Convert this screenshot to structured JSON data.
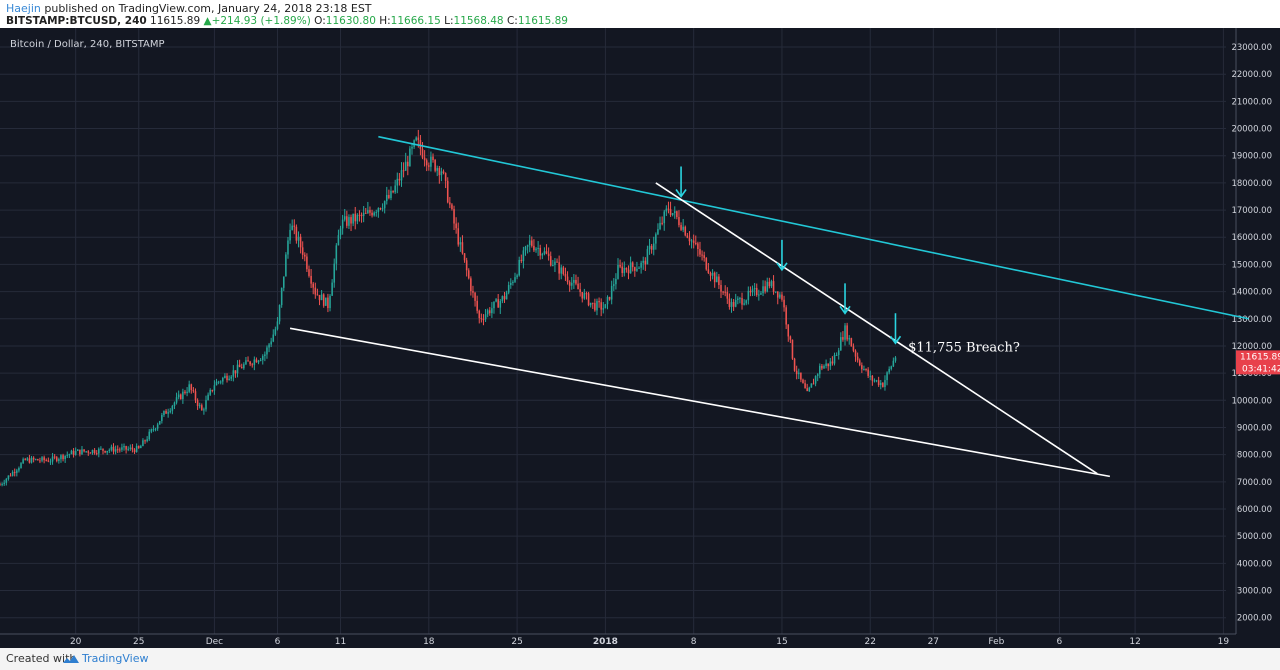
{
  "header": {
    "author": "Haejin",
    "published_text": " published on TradingView.com, January 24, 2018 23:18 EST",
    "symbol": "BITSTAMP:BTCUSD, 240",
    "last": "11615.89",
    "change": "+214.93 (+1.89%)",
    "change_arrow": "▲",
    "open_label": "O:",
    "open": "11630.80",
    "high_label": "H:",
    "high": "11666.15",
    "low_label": "L:",
    "low": "11568.48",
    "close_label": "C:",
    "close": "11615.89"
  },
  "footer": {
    "created_with": "Created with",
    "brand": "TradingView"
  },
  "colors": {
    "background": "#131722",
    "grid": "#262b3a",
    "up": "#26a69a",
    "down": "#ef5350",
    "channel": "#22c7d6",
    "trendline": "#ffffff",
    "arrow": "#2ad4e0",
    "price_tag": "#e8414b"
  },
  "chart_data": {
    "type": "candlestick",
    "title": "Bitcoin / Dollar, 240, BITSTAMP",
    "yticks": [
      2000,
      3000,
      4000,
      5000,
      6000,
      7000,
      8000,
      9000,
      10000,
      11000,
      12000,
      13000,
      14000,
      15000,
      16000,
      17000,
      18000,
      19000,
      20000,
      21000,
      22000,
      23000
    ],
    "ylim": [
      1400,
      23700
    ],
    "x_axis_start": "2017-11-14",
    "xlim_days": [
      0,
      98
    ],
    "xticks": [
      {
        "label": "20",
        "date": "2017-11-20"
      },
      {
        "label": "25",
        "date": "2017-11-25"
      },
      {
        "label": "Dec",
        "date": "2017-12-01"
      },
      {
        "label": "6",
        "date": "2017-12-06"
      },
      {
        "label": "11",
        "date": "2017-12-11"
      },
      {
        "label": "18",
        "date": "2017-12-18"
      },
      {
        "label": "25",
        "date": "2017-12-25"
      },
      {
        "label": "2018",
        "date": "2018-01-01"
      },
      {
        "label": "8",
        "date": "2018-01-08"
      },
      {
        "label": "15",
        "date": "2018-01-15"
      },
      {
        "label": "22",
        "date": "2018-01-22"
      },
      {
        "label": "27",
        "date": "2018-01-27"
      },
      {
        "label": "Feb",
        "date": "2018-02-01"
      },
      {
        "label": "6",
        "date": "2018-02-06"
      },
      {
        "label": "12",
        "date": "2018-02-12"
      },
      {
        "label": "19",
        "date": "2018-02-19"
      }
    ],
    "price_path": [
      [
        "2017-11-14",
        6900
      ],
      [
        "2017-11-16",
        7800
      ],
      [
        "2017-11-18",
        7800
      ],
      [
        "2017-11-20",
        8100
      ],
      [
        "2017-11-23",
        8200
      ],
      [
        "2017-11-25",
        8200
      ],
      [
        "2017-11-27",
        9500
      ],
      [
        "2017-11-29",
        10500
      ],
      [
        "2017-11-30",
        9600
      ],
      [
        "2017-12-01",
        10600
      ],
      [
        "2017-12-03",
        11200
      ],
      [
        "2017-12-05",
        11700
      ],
      [
        "2017-12-06",
        12800
      ],
      [
        "2017-12-07",
        16500
      ],
      [
        "2017-12-08",
        15500
      ],
      [
        "2017-12-09",
        14000
      ],
      [
        "2017-12-10",
        13500
      ],
      [
        "2017-12-11",
        16500
      ],
      [
        "2017-12-13",
        16800
      ],
      [
        "2017-12-15",
        17500
      ],
      [
        "2017-12-17",
        19500
      ],
      [
        "2017-12-18",
        18800
      ],
      [
        "2017-12-19",
        18500
      ],
      [
        "2017-12-20",
        16500
      ],
      [
        "2017-12-22",
        13000
      ],
      [
        "2017-12-24",
        13800
      ],
      [
        "2017-12-26",
        15800
      ],
      [
        "2017-12-27",
        15500
      ],
      [
        "2017-12-29",
        14500
      ],
      [
        "2017-12-31",
        13500
      ],
      [
        "2018-01-01",
        13400
      ],
      [
        "2018-01-02",
        14800
      ],
      [
        "2018-01-04",
        15000
      ],
      [
        "2018-01-06",
        17100
      ],
      [
        "2018-01-07",
        16500
      ],
      [
        "2018-01-09",
        15000
      ],
      [
        "2018-01-11",
        13500
      ],
      [
        "2018-01-13",
        14000
      ],
      [
        "2018-01-14",
        14300
      ],
      [
        "2018-01-15",
        13800
      ],
      [
        "2018-01-16",
        11200
      ],
      [
        "2018-01-17",
        10200
      ],
      [
        "2018-01-18",
        11200
      ],
      [
        "2018-01-19",
        11400
      ],
      [
        "2018-01-20",
        12600
      ],
      [
        "2018-01-21",
        11500
      ],
      [
        "2018-01-22",
        10800
      ],
      [
        "2018-01-23",
        10600
      ],
      [
        "2018-01-24",
        11616
      ]
    ],
    "trendlines": [
      {
        "name": "upper-channel",
        "color": "channel",
        "start": [
          "2017-12-14",
          19700
        ],
        "end": [
          "2018-02-21",
          13000
        ]
      },
      {
        "name": "upper-descending",
        "color": "trendline",
        "start": [
          "2018-01-05",
          18000
        ],
        "end": [
          "2018-02-09",
          7300
        ]
      },
      {
        "name": "lower-support",
        "color": "trendline",
        "start": [
          "2017-12-07",
          12650
        ],
        "end": [
          "2018-02-10",
          7200
        ]
      }
    ],
    "arrows": [
      {
        "date": "2018-01-07",
        "price": 17500
      },
      {
        "date": "2018-01-15",
        "price": 14800
      },
      {
        "date": "2018-01-20",
        "price": 13200
      },
      {
        "date": "2018-01-24",
        "price": 12100
      }
    ],
    "annotation": {
      "text": "$11,755 Breach?",
      "date": "2018-01-25",
      "price": 11800
    },
    "price_tag": {
      "value": "11615.89",
      "timer": "03:41:42",
      "price": 11615.89
    }
  }
}
